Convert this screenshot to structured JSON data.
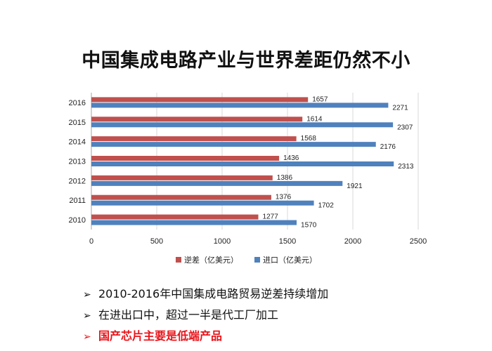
{
  "page_title": "中国集成电路产业与世界差距仍然不小",
  "colors": {
    "deficit": "#c0504d",
    "import": "#4f81bd",
    "highlight": "#e8151b"
  },
  "chart_data": {
    "type": "bar",
    "orientation": "horizontal",
    "categories": [
      "2016",
      "2015",
      "2014",
      "2013",
      "2012",
      "2011",
      "2010"
    ],
    "series": [
      {
        "name": "逆差（亿美元）",
        "values": [
          1657,
          1614,
          1568,
          1436,
          1386,
          1376,
          1277
        ]
      },
      {
        "name": "进口（亿美元）",
        "values": [
          2271,
          2307,
          2176,
          2313,
          1921,
          1702,
          1570
        ]
      }
    ],
    "x_ticks": [
      "0",
      "500",
      "1000",
      "1500",
      "2000",
      "2500"
    ],
    "xlim": [
      0,
      2500
    ],
    "grid": true,
    "legend_position": "bottom"
  },
  "bullets": [
    {
      "arrow": "➢",
      "text": "2010-2016年中国集成电路贸易逆差持续增加"
    },
    {
      "arrow": "➢",
      "text": "在进出口中，超过一半是代工厂加工"
    },
    {
      "arrow": "➢",
      "text": "国产芯片主要是低端产品"
    }
  ]
}
